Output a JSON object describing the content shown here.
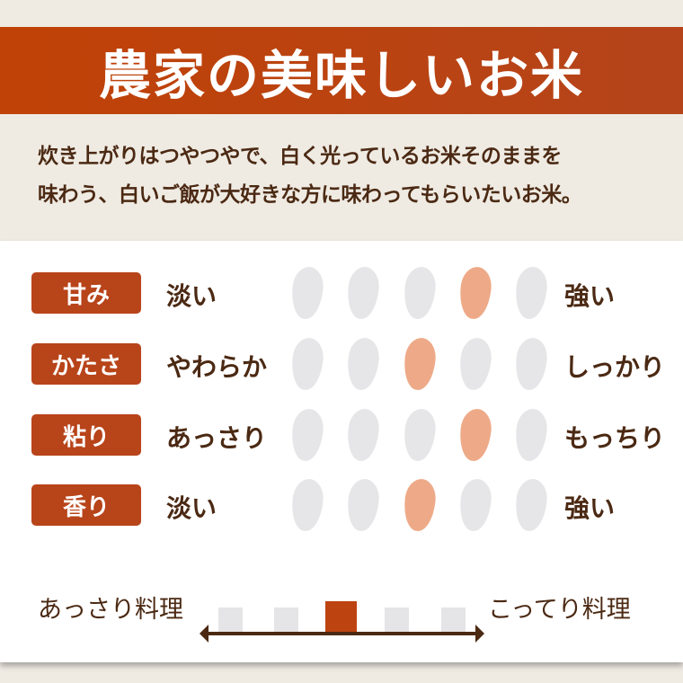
{
  "title": "農家の美味しいお米",
  "intro": [
    "炊き上がりはつやつやで、白く光っているお米そのままを",
    "味わう、白いご飯が大好きな方に味わってもらいたいお米。"
  ],
  "scale_max": 5,
  "colors": {
    "accent": "#b8441a",
    "grain_on": "#eeaa88",
    "grain_off": "#e6e5e7",
    "text": "#4b2913"
  },
  "rows": [
    {
      "label": "甘み",
      "left": "淡い",
      "right": "強い",
      "level": 4
    },
    {
      "label": "かたさ",
      "left": "やわらか",
      "right": "しっかり",
      "level": 3
    },
    {
      "label": "粘り",
      "left": "あっさり",
      "right": "もっちり",
      "level": 4
    },
    {
      "label": "香り",
      "left": "淡い",
      "right": "強い",
      "level": 3
    }
  ],
  "dish": {
    "left": "あっさり料理",
    "right": "こってり料理",
    "level": 3
  }
}
